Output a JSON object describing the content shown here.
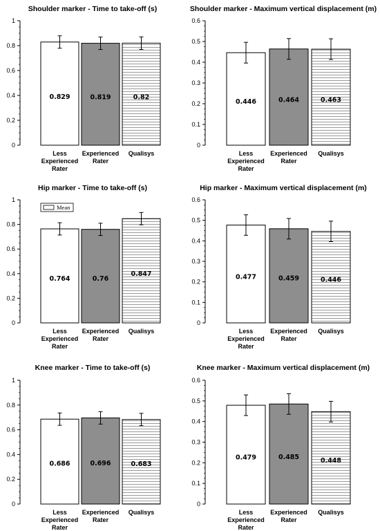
{
  "chart_data": [
    {
      "type": "bar",
      "title": "Shoulder marker - Time to take-off (s)",
      "categories": [
        "Less Experienced Rater",
        "Experienced Rater",
        "Qualisys"
      ],
      "category_lines": [
        [
          "Less",
          "Experienced",
          "Rater"
        ],
        [
          "Experienced",
          "Rater"
        ],
        [
          "Qualisys"
        ]
      ],
      "values": [
        0.829,
        0.819,
        0.82
      ],
      "value_labels": [
        "0.829",
        "0.819",
        "0.82"
      ],
      "error": [
        0.05,
        0.05,
        0.05
      ],
      "ylim": [
        0,
        1
      ],
      "yticks": [
        "0",
        "0.2",
        "0.4",
        "0.6",
        "0.8",
        "1"
      ],
      "fills": [
        "white",
        "gray",
        "hatched-horizontal"
      ],
      "legend": null
    },
    {
      "type": "bar",
      "title": "Shoulder marker - Maximum vertical displacement (m)",
      "categories": [
        "Less Experienced Rater",
        "Experienced Rater",
        "Qualisys"
      ],
      "category_lines": [
        [
          "Less",
          "Experienced",
          "Rater"
        ],
        [
          "Experienced",
          "Rater"
        ],
        [
          "Qualisys"
        ]
      ],
      "values": [
        0.446,
        0.464,
        0.463
      ],
      "value_labels": [
        "0.446",
        "0.464",
        "0.463"
      ],
      "error": [
        0.05,
        0.05,
        0.05
      ],
      "ylim": [
        0,
        0.6
      ],
      "yticks": [
        "0",
        "0.1",
        "0.2",
        "0.3",
        "0.4",
        "0.5",
        "0.6"
      ],
      "fills": [
        "white",
        "gray",
        "hatched-horizontal"
      ],
      "legend": null
    },
    {
      "type": "bar",
      "title": "Hip marker - Time to take-off (s)",
      "categories": [
        "Less Experienced Rater",
        "Experienced Rater",
        "Qualisys"
      ],
      "category_lines": [
        [
          "Less",
          "Experienced",
          "Rater"
        ],
        [
          "Experienced",
          "Rater"
        ],
        [
          "Qualisys"
        ]
      ],
      "values": [
        0.764,
        0.76,
        0.847
      ],
      "value_labels": [
        "0.764",
        "0.76",
        "0.847"
      ],
      "error": [
        0.05,
        0.05,
        0.05
      ],
      "ylim": [
        0,
        1
      ],
      "yticks": [
        "0",
        "0.2",
        "0.4",
        "0.6",
        "0.8",
        "1"
      ],
      "fills": [
        "white",
        "gray",
        "hatched-horizontal"
      ],
      "legend": {
        "label": "Mean",
        "position": "top-left"
      }
    },
    {
      "type": "bar",
      "title": "Hip marker - Maximum vertical displacement (m)",
      "categories": [
        "Less Experienced Rater",
        "Experienced Rater",
        "Qualisys"
      ],
      "category_lines": [
        [
          "Less",
          "Experienced",
          "Rater"
        ],
        [
          "Experienced",
          "Rater"
        ],
        [
          "Qualisys"
        ]
      ],
      "values": [
        0.477,
        0.459,
        0.446
      ],
      "value_labels": [
        "0.477",
        "0.459",
        "0.446"
      ],
      "error": [
        0.05,
        0.05,
        0.05
      ],
      "ylim": [
        0,
        0.6
      ],
      "yticks": [
        "0",
        "0.1",
        "0.2",
        "0.3",
        "0.4",
        "0.5",
        "0.6"
      ],
      "fills": [
        "white",
        "gray",
        "hatched-horizontal"
      ],
      "legend": null
    },
    {
      "type": "bar",
      "title": "Knee marker - Time to take-off (s)",
      "categories": [
        "Less Experienced Rater",
        "Experienced Rater",
        "Qualisys"
      ],
      "category_lines": [
        [
          "Less",
          "Experienced",
          "Rater"
        ],
        [
          "Experienced",
          "Rater"
        ],
        [
          "Qualisys"
        ]
      ],
      "values": [
        0.686,
        0.696,
        0.683
      ],
      "value_labels": [
        "0.686",
        "0.696",
        "0.683"
      ],
      "error": [
        0.05,
        0.05,
        0.05
      ],
      "ylim": [
        0,
        1
      ],
      "yticks": [
        "0",
        "0.2",
        "0.4",
        "0.6",
        "0.8",
        "1"
      ],
      "fills": [
        "white",
        "gray",
        "hatched-horizontal"
      ],
      "legend": null
    },
    {
      "type": "bar",
      "title": "Knee marker - Maximum vertical displacement (m)",
      "categories": [
        "Less Experienced Rater",
        "Experienced Rater",
        "Qualisys"
      ],
      "category_lines": [
        [
          "Less",
          "Experienced",
          "Rater"
        ],
        [
          "Experienced",
          "Rater"
        ],
        [
          "Qualisys"
        ]
      ],
      "values": [
        0.479,
        0.485,
        0.448
      ],
      "value_labels": [
        "0.479",
        "0.485",
        "0.448"
      ],
      "error": [
        0.05,
        0.05,
        0.05
      ],
      "ylim": [
        0,
        0.6
      ],
      "yticks": [
        "0",
        "0.1",
        "0.2",
        "0.3",
        "0.4",
        "0.5",
        "0.6"
      ],
      "fills": [
        "white",
        "gray",
        "hatched-horizontal"
      ],
      "legend": null
    }
  ],
  "colors": {
    "bar_gray": "#8e8e8e",
    "stroke": "#000000",
    "background": "#ffffff"
  }
}
